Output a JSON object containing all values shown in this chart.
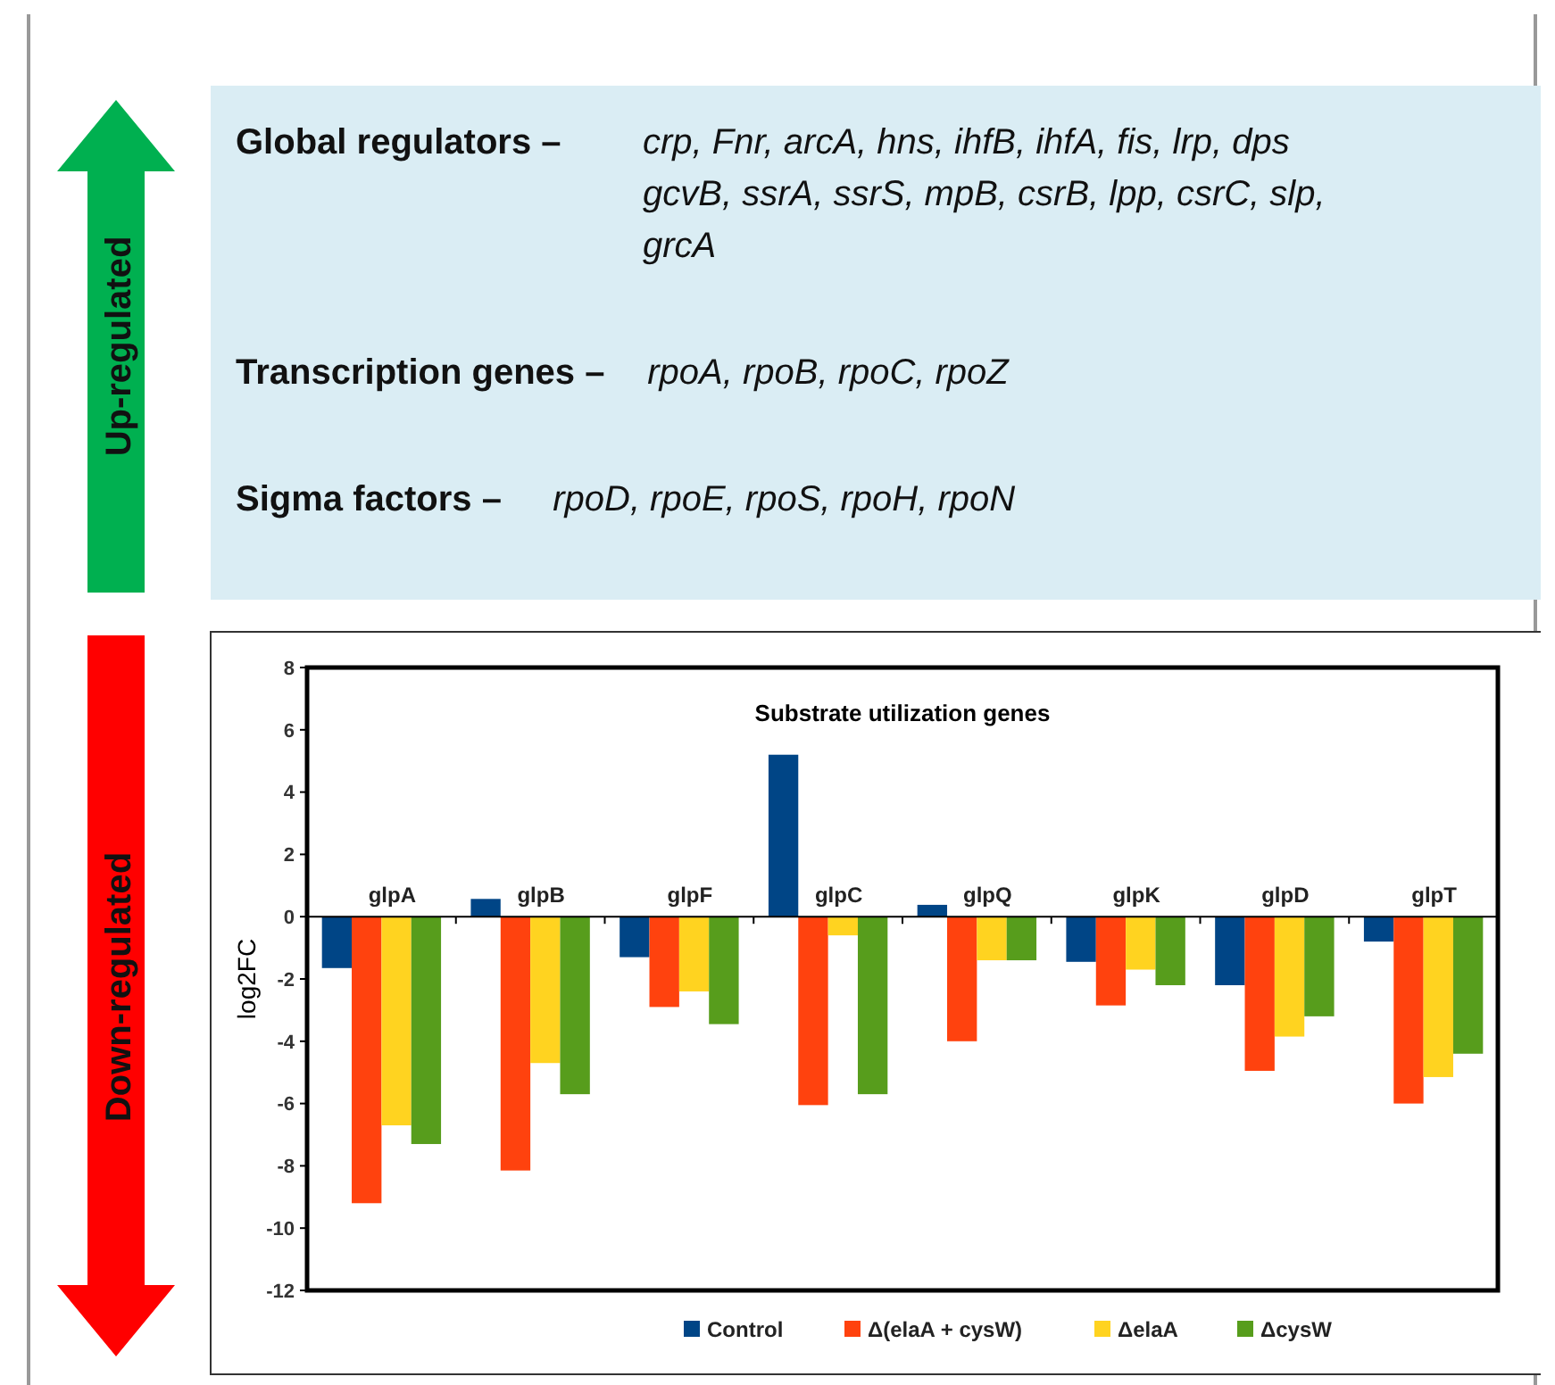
{
  "chart_data": [
    {
      "type": "other",
      "annotations": [
        "Up-regulated",
        "Global regulators –",
        "crp, Fnr, arcA, hns, ihfB, ihfA, fis, lrp, dps gcvB, ssrA, ssrS, mpB, csrB, lpp, csrC, slp, grcA",
        "Transcription genes –",
        "rpoA, rpoB, rpoC, rpoZ",
        "Sigma factors  –",
        "rpoD, rpoE, rpoS, rpoH, rpoN"
      ]
    },
    {
      "type": "bar",
      "title": "Substrate utilization genes",
      "ylabel": "log2FC",
      "annotations": [
        "Down-regulated"
      ],
      "categories": [
        "glpA",
        "glpB",
        "glpF",
        "glpC",
        "glpQ",
        "glpK",
        "glpD",
        "glpT"
      ],
      "series": [
        {
          "name": "Control",
          "color": "#004586",
          "values": [
            -1.65,
            0.57,
            -1.3,
            5.2,
            0.38,
            -1.45,
            -2.2,
            -0.8
          ]
        },
        {
          "name": "Δ(elaA + cysW)",
          "color": "#ff420e",
          "values": [
            -9.2,
            -8.15,
            -2.9,
            -6.05,
            -4.0,
            -2.85,
            -4.95,
            -6.0
          ]
        },
        {
          "name": "ΔelaA",
          "color": "#ffd320",
          "values": [
            -6.7,
            -4.7,
            -2.4,
            -0.6,
            -1.4,
            -1.7,
            -3.85,
            -5.15
          ]
        },
        {
          "name": "ΔcysW",
          "color": "#579d1c",
          "values": [
            -7.3,
            -5.7,
            -3.45,
            -5.7,
            -1.4,
            -2.2,
            -3.2,
            -4.4
          ]
        }
      ],
      "ylim": [
        -12,
        8
      ],
      "yticks": [
        -12,
        -10,
        -8,
        -6,
        -4,
        -2,
        0,
        2,
        4,
        6,
        8
      ],
      "grid": false,
      "legend": "bottom"
    }
  ]
}
